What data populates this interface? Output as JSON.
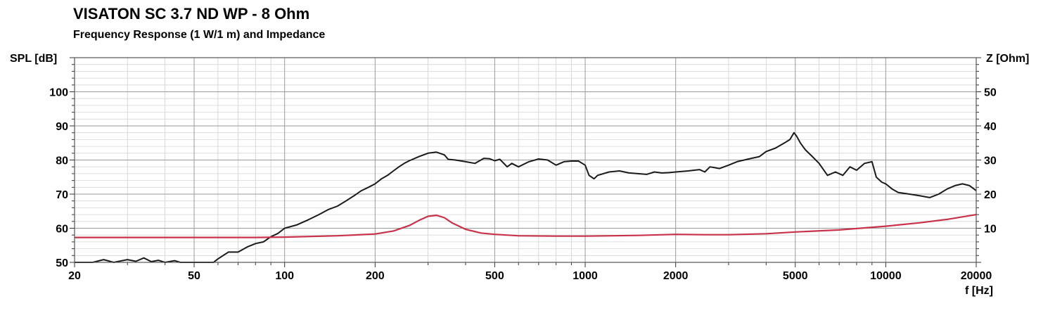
{
  "chart_data": {
    "type": "line",
    "title": "VISATON SC 3.7 ND WP - 8 Ohm",
    "subtitle": "Frequency Response (1 W/1 m) and Impedance",
    "ylabel_left": "SPL [dB]",
    "ylabel_right": "Z [Ohm]",
    "xlabel": "f [Hz]",
    "x_scale": "log",
    "xlim": [
      20,
      20000
    ],
    "ylim_left": [
      50,
      110
    ],
    "ylim_right": [
      0,
      60
    ],
    "x_ticks": [
      20,
      50,
      100,
      200,
      500,
      1000,
      2000,
      5000,
      10000,
      20000
    ],
    "x_tick_labels": [
      "20",
      "50",
      "100",
      "200",
      "500",
      "1000",
      "2000",
      "5000",
      "10000",
      "20000"
    ],
    "y_ticks_left": [
      50,
      60,
      70,
      80,
      90,
      100
    ],
    "y_tick_labels_left": [
      "50",
      "60",
      "70",
      "80",
      "90",
      "100"
    ],
    "y_ticks_right": [
      10,
      20,
      30,
      40,
      50
    ],
    "y_tick_labels_right": [
      "10",
      "20",
      "30",
      "40",
      "50"
    ],
    "grid": true,
    "series": [
      {
        "color": "#1a1a1a",
        "axis": "left",
        "x": [
          20,
          23,
          25,
          27,
          30,
          32,
          34,
          36,
          38,
          40,
          43,
          45,
          50,
          55,
          58,
          60,
          65,
          70,
          75,
          80,
          85,
          90,
          95,
          100,
          110,
          120,
          130,
          140,
          150,
          160,
          170,
          180,
          190,
          200,
          210,
          220,
          230,
          240,
          250,
          260,
          280,
          300,
          320,
          340,
          350,
          370,
          400,
          430,
          460,
          480,
          500,
          520,
          550,
          570,
          600,
          650,
          700,
          750,
          800,
          850,
          900,
          950,
          1000,
          1030,
          1070,
          1100,
          1200,
          1300,
          1400,
          1500,
          1600,
          1700,
          1800,
          1900,
          2000,
          2200,
          2400,
          2500,
          2600,
          2800,
          3000,
          3200,
          3500,
          3800,
          4000,
          4300,
          4600,
          4800,
          4950,
          5050,
          5200,
          5400,
          5700,
          6000,
          6400,
          6800,
          7200,
          7600,
          8000,
          8500,
          9000,
          9300,
          9700,
          10000,
          10500,
          11000,
          12000,
          13000,
          14000,
          15000,
          16000,
          17000,
          18000,
          19000,
          20000
        ],
        "y": [
          50,
          50,
          50.8,
          50,
          50.8,
          50.3,
          51.3,
          50.2,
          50.6,
          50,
          50.5,
          50,
          50,
          50,
          50,
          51,
          53,
          53,
          54.5,
          55.5,
          56,
          57.5,
          58.5,
          60,
          61,
          62.5,
          64,
          65.5,
          66.5,
          68,
          69.5,
          71,
          72,
          73,
          74.5,
          75.5,
          76.8,
          78,
          79,
          79.8,
          81,
          82,
          82.3,
          81.5,
          80.2,
          80,
          79.5,
          79,
          80.5,
          80.4,
          79.8,
          80.2,
          78,
          79,
          78,
          79.5,
          80.3,
          80,
          78.5,
          79.5,
          79.7,
          79.7,
          78.5,
          75.5,
          74.5,
          75.5,
          76.5,
          76.8,
          76.2,
          76,
          75.8,
          76.5,
          76.2,
          76.3,
          76.5,
          76.8,
          77.2,
          76.5,
          78,
          77.5,
          78.5,
          79.5,
          80.3,
          81,
          82.5,
          83.5,
          85,
          86,
          88,
          87,
          85,
          83,
          81,
          79,
          75.5,
          76.5,
          75.5,
          78,
          77,
          79,
          79.5,
          75,
          73.5,
          73,
          71.5,
          70.5,
          70,
          69.5,
          69,
          70,
          71.5,
          72.5,
          73,
          72.5,
          71
        ]
      },
      {
        "color": "#c8324a",
        "axis": "right",
        "x": [
          20,
          50,
          80,
          100,
          150,
          200,
          230,
          260,
          280,
          300,
          320,
          340,
          360,
          400,
          450,
          500,
          600,
          800,
          1000,
          1500,
          2000,
          2500,
          3000,
          4000,
          5000,
          7000,
          10000,
          13000,
          16000,
          20000
        ],
        "y": [
          7.3,
          7.3,
          7.3,
          7.4,
          7.8,
          8.3,
          9.2,
          10.8,
          12.3,
          13.5,
          13.8,
          13.1,
          11.6,
          9.7,
          8.6,
          8.2,
          7.8,
          7.7,
          7.7,
          7.9,
          8.2,
          8.1,
          8.1,
          8.4,
          8.9,
          9.5,
          10.6,
          11.6,
          12.6,
          14.0
        ]
      }
    ]
  }
}
